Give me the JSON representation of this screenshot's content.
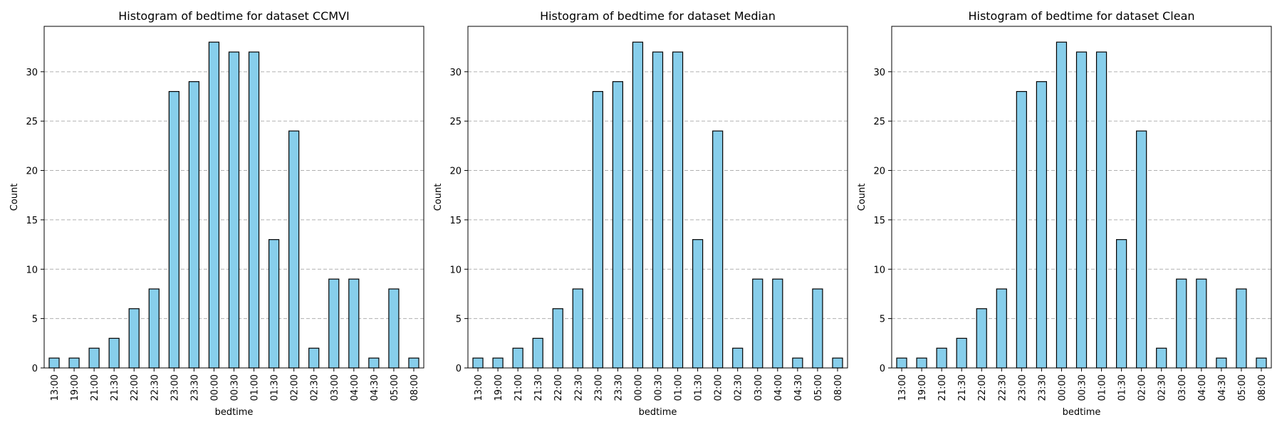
{
  "chart_data": [
    {
      "type": "bar",
      "title": "Histogram of bedtime for dataset CCMVI",
      "xlabel": "bedtime",
      "ylabel": "Count",
      "ylim": [
        0,
        34.6
      ],
      "yticks": [
        0,
        5,
        10,
        15,
        20,
        25,
        30
      ],
      "grid": "y-dashed",
      "categories": [
        "13:00",
        "19:00",
        "21:00",
        "21:30",
        "22:00",
        "22:30",
        "23:00",
        "23:30",
        "00:00",
        "00:30",
        "01:00",
        "01:30",
        "02:00",
        "02:30",
        "03:00",
        "04:00",
        "04:30",
        "05:00",
        "08:00"
      ],
      "values": [
        1,
        1,
        2,
        3,
        6,
        8,
        28,
        29,
        33,
        32,
        32,
        13,
        24,
        2,
        9,
        9,
        1,
        8,
        1
      ],
      "bar_color": "#87ceeb",
      "edge_color": "#000000"
    },
    {
      "type": "bar",
      "title": "Histogram of bedtime for dataset Median",
      "xlabel": "bedtime",
      "ylabel": "Count",
      "ylim": [
        0,
        34.6
      ],
      "yticks": [
        0,
        5,
        10,
        15,
        20,
        25,
        30
      ],
      "grid": "y-dashed",
      "categories": [
        "13:00",
        "19:00",
        "21:00",
        "21:30",
        "22:00",
        "22:30",
        "23:00",
        "23:30",
        "00:00",
        "00:30",
        "01:00",
        "01:30",
        "02:00",
        "02:30",
        "03:00",
        "04:00",
        "04:30",
        "05:00",
        "08:00"
      ],
      "values": [
        1,
        1,
        2,
        3,
        6,
        8,
        28,
        29,
        33,
        32,
        32,
        13,
        24,
        2,
        9,
        9,
        1,
        8,
        1
      ],
      "bar_color": "#87ceeb",
      "edge_color": "#000000"
    },
    {
      "type": "bar",
      "title": "Histogram of bedtime for dataset Clean",
      "xlabel": "bedtime",
      "ylabel": "Count",
      "ylim": [
        0,
        34.6
      ],
      "yticks": [
        0,
        5,
        10,
        15,
        20,
        25,
        30
      ],
      "grid": "y-dashed",
      "categories": [
        "13:00",
        "19:00",
        "21:00",
        "21:30",
        "22:00",
        "22:30",
        "23:00",
        "23:30",
        "00:00",
        "00:30",
        "01:00",
        "01:30",
        "02:00",
        "02:30",
        "03:00",
        "04:00",
        "04:30",
        "05:00",
        "08:00"
      ],
      "values": [
        1,
        1,
        2,
        3,
        6,
        8,
        28,
        29,
        33,
        32,
        32,
        13,
        24,
        2,
        9,
        9,
        1,
        8,
        1
      ],
      "bar_color": "#87ceeb",
      "edge_color": "#000000"
    }
  ]
}
